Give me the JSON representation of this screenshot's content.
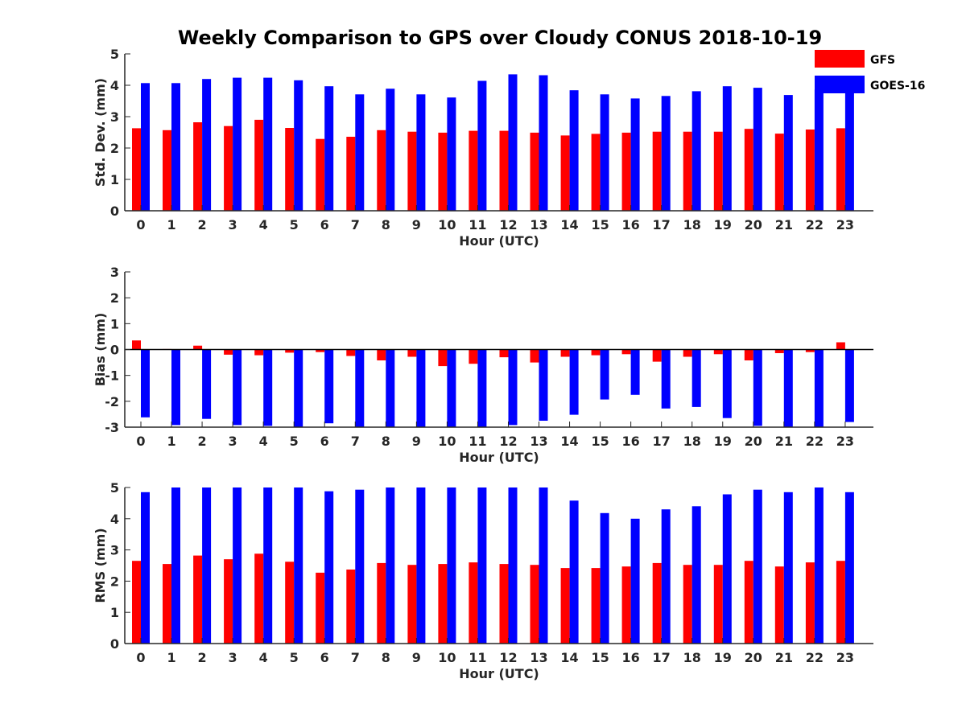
{
  "figure": {
    "title": "Weekly Comparison to GPS over Cloudy CONUS 2018-10-19"
  },
  "legend": {
    "gfs_label": "GFS",
    "goes_label": "GOES-16",
    "placement": "top-right outside"
  },
  "colors": {
    "GFS": "#ff0000",
    "GOES-16": "#0000ff",
    "axis": "#262626"
  },
  "chart_data": [
    {
      "type": "bar",
      "xlabel": "Hour (UTC)",
      "ylabel": "Std. Dev. (mm)",
      "ylim": [
        0,
        5
      ],
      "yticks": [
        0,
        1,
        2,
        3,
        4,
        5
      ],
      "categories": [
        "0",
        "1",
        "2",
        "3",
        "4",
        "5",
        "6",
        "7",
        "8",
        "9",
        "10",
        "11",
        "12",
        "13",
        "14",
        "15",
        "16",
        "17",
        "18",
        "19",
        "20",
        "21",
        "22",
        "23"
      ],
      "grid": false,
      "series": [
        {
          "name": "GFS",
          "values": [
            2.63,
            2.57,
            2.82,
            2.7,
            2.9,
            2.64,
            2.29,
            2.36,
            2.57,
            2.52,
            2.49,
            2.55,
            2.55,
            2.49,
            2.4,
            2.45,
            2.49,
            2.52,
            2.52,
            2.52,
            2.61,
            2.46,
            2.59,
            2.63
          ]
        },
        {
          "name": "GOES-16",
          "values": [
            4.07,
            4.07,
            4.2,
            4.24,
            4.24,
            4.16,
            3.97,
            3.71,
            3.89,
            3.71,
            3.61,
            4.14,
            4.35,
            4.32,
            3.84,
            3.71,
            3.58,
            3.66,
            3.81,
            3.97,
            3.92,
            3.69,
            3.86,
            3.94
          ]
        }
      ]
    },
    {
      "type": "bar",
      "xlabel": "Hour (UTC)",
      "ylabel": "Bias (mm)",
      "ylim": [
        -3,
        3
      ],
      "yticks": [
        -3,
        -2,
        -1,
        0,
        1,
        2,
        3
      ],
      "zero_line": true,
      "categories": [
        "0",
        "1",
        "2",
        "3",
        "4",
        "5",
        "6",
        "7",
        "8",
        "9",
        "10",
        "11",
        "12",
        "13",
        "14",
        "15",
        "16",
        "17",
        "18",
        "19",
        "20",
        "21",
        "22",
        "23"
      ],
      "grid": false,
      "series": [
        {
          "name": "GFS",
          "values": [
            0.35,
            0.02,
            0.15,
            -0.2,
            -0.22,
            -0.12,
            -0.1,
            -0.25,
            -0.42,
            -0.28,
            -0.64,
            -0.55,
            -0.3,
            -0.5,
            -0.28,
            -0.22,
            -0.18,
            -0.47,
            -0.28,
            -0.18,
            -0.42,
            -0.14,
            -0.1,
            0.28
          ]
        },
        {
          "name": "GOES-16",
          "values": [
            -2.62,
            -2.92,
            -2.68,
            -2.92,
            -2.95,
            -3.0,
            -2.85,
            -3.0,
            -3.0,
            -3.0,
            -3.0,
            -3.0,
            -2.92,
            -2.75,
            -2.52,
            -1.93,
            -1.75,
            -2.28,
            -2.22,
            -2.65,
            -2.95,
            -3.0,
            -3.0,
            -2.8
          ]
        }
      ]
    },
    {
      "type": "bar",
      "xlabel": "Hour (UTC)",
      "ylabel": "RMS (mm)",
      "ylim": [
        0,
        5
      ],
      "yticks": [
        0,
        1,
        2,
        3,
        4,
        5
      ],
      "categories": [
        "0",
        "1",
        "2",
        "3",
        "4",
        "5",
        "6",
        "7",
        "8",
        "9",
        "10",
        "11",
        "12",
        "13",
        "14",
        "15",
        "16",
        "17",
        "18",
        "19",
        "20",
        "21",
        "22",
        "23"
      ],
      "grid": false,
      "series": [
        {
          "name": "GFS",
          "values": [
            2.65,
            2.55,
            2.82,
            2.7,
            2.88,
            2.62,
            2.27,
            2.37,
            2.58,
            2.52,
            2.55,
            2.6,
            2.55,
            2.52,
            2.42,
            2.42,
            2.47,
            2.58,
            2.52,
            2.52,
            2.65,
            2.47,
            2.6,
            2.65
          ]
        },
        {
          "name": "GOES-16",
          "values": [
            4.85,
            5.0,
            5.0,
            5.0,
            5.0,
            5.0,
            4.88,
            4.93,
            5.0,
            5.0,
            5.0,
            5.0,
            5.0,
            5.0,
            4.58,
            4.18,
            4.0,
            4.3,
            4.4,
            4.78,
            4.93,
            4.85,
            5.0,
            4.85
          ]
        }
      ]
    }
  ]
}
